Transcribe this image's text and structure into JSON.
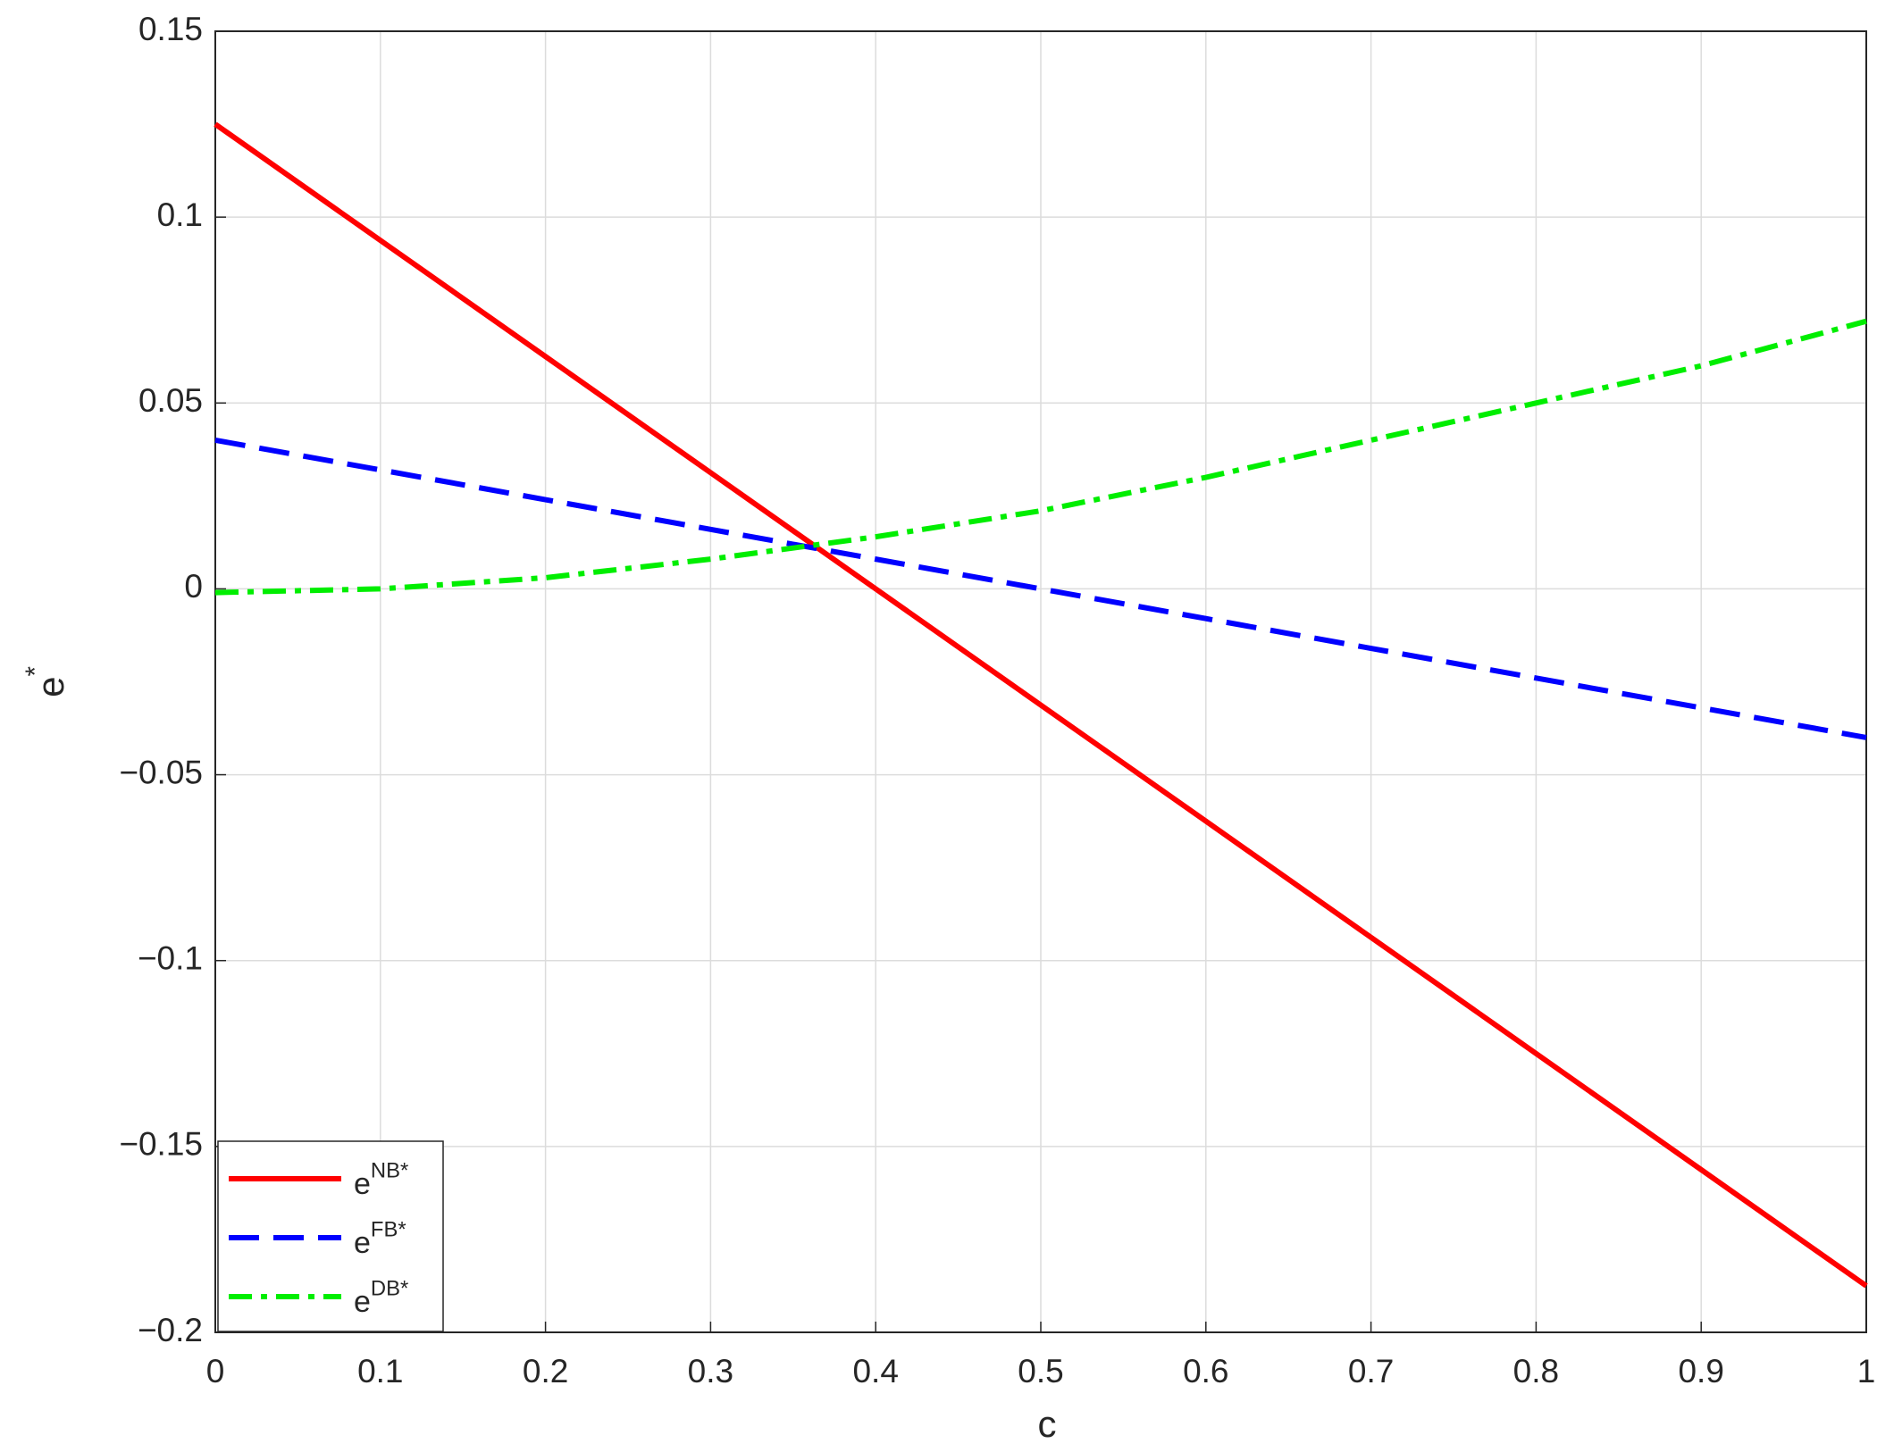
{
  "chart_data": {
    "type": "line",
    "xlabel": "c",
    "ylabel": "e*",
    "x": [
      0,
      0.1,
      0.2,
      0.3,
      0.4,
      0.5,
      0.6,
      0.7,
      0.8,
      0.9,
      1
    ],
    "series": [
      {
        "name": "eNB*",
        "color": "#ff0000",
        "dash": "solid",
        "values": [
          0.125,
          0.09375,
          0.0625,
          0.03125,
          0,
          -0.03125,
          -0.0625,
          -0.09375,
          -0.125,
          -0.15625,
          -0.1875
        ]
      },
      {
        "name": "eFB*",
        "color": "#0000ff",
        "dash": "dashed",
        "values": [
          0.04,
          0.032,
          0.024,
          0.016,
          0.008,
          0,
          -0.008,
          -0.016,
          -0.024,
          -0.032,
          -0.04
        ]
      },
      {
        "name": "eDB*",
        "color": "#00ee00",
        "dash": "dashdot",
        "values": [
          -0.001,
          0,
          0.003,
          0.008,
          0.014,
          0.021,
          0.03,
          0.04,
          0.05,
          0.06,
          0.072
        ]
      }
    ],
    "xlim": [
      0,
      1
    ],
    "xticks": [
      0,
      0.1,
      0.2,
      0.3,
      0.4,
      0.5,
      0.6,
      0.7,
      0.8,
      0.9,
      1
    ],
    "ylim": [
      -0.2,
      0.15
    ],
    "yticks": [
      {
        "value": -0.2,
        "label": "−0.2"
      },
      {
        "value": -0.15,
        "label": "−0.15"
      },
      {
        "value": -0.1,
        "label": "−0.1"
      },
      {
        "value": -0.05,
        "label": "−0.05"
      },
      0,
      0.05,
      0.1,
      0.15
    ],
    "grid": true,
    "legend": "lower-left"
  }
}
